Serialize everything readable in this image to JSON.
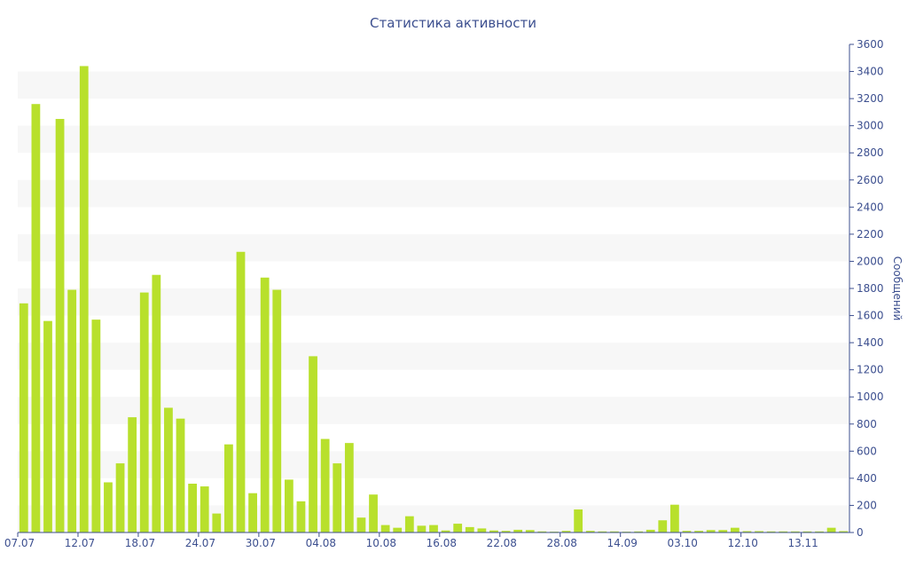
{
  "chart_data": {
    "type": "bar",
    "title": "Статистика активности",
    "xlabel": "",
    "ylabel": "Сообщений",
    "ylim": [
      0,
      3600
    ],
    "y_ticks": [
      0,
      200,
      400,
      600,
      800,
      1000,
      1200,
      1400,
      1600,
      1800,
      2000,
      2200,
      2400,
      2600,
      2800,
      3000,
      3200,
      3400,
      3600
    ],
    "y_axis_side": "right",
    "grid": "alternating horizontal bands",
    "bar_color": "#b8e02c",
    "axis_color": "#3c4f8f",
    "x_tick_labels": [
      "07.07",
      "12.07",
      "18.07",
      "24.07",
      "30.07",
      "04.08",
      "10.08",
      "16.08",
      "22.08",
      "28.08",
      "14.09",
      "03.10",
      "12.10",
      "13.11"
    ],
    "x_tick_indices": [
      0,
      5,
      10,
      15,
      20,
      25,
      30,
      35,
      40,
      45,
      50,
      55,
      60,
      65
    ],
    "values": [
      1690,
      3160,
      1560,
      3050,
      1790,
      3440,
      1570,
      370,
      510,
      850,
      1770,
      1900,
      920,
      840,
      360,
      340,
      140,
      650,
      2070,
      290,
      1880,
      1790,
      390,
      230,
      1300,
      690,
      510,
      660,
      110,
      280,
      55,
      35,
      120,
      50,
      55,
      15,
      65,
      40,
      30,
      15,
      12,
      20,
      18,
      8,
      6,
      12,
      170,
      12,
      8,
      8,
      6,
      8,
      20,
      90,
      205,
      12,
      12,
      18,
      18,
      35,
      10,
      10,
      8,
      8,
      8,
      8,
      8,
      35,
      10
    ]
  }
}
